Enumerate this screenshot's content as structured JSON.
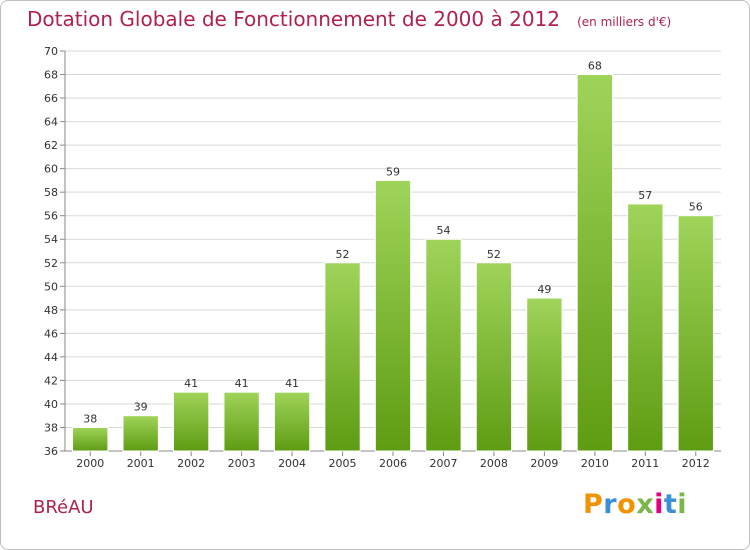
{
  "title": {
    "main": "Dotation Globale de Fonctionnement de 2000 à 2012",
    "subtitle": "(en milliers d'€)"
  },
  "commune": "BRéAU",
  "logo": {
    "text": "Proxiti",
    "colors": [
      "#f39200",
      "#3a8fd6",
      "#f39200",
      "#7ab648",
      "#e5007e",
      "#3a8fd6",
      "#7ab648"
    ]
  },
  "colors": {
    "title": "#b0224d",
    "bar_top": "#9fd45a",
    "bar_bottom": "#5e9c12",
    "grid": "#d9d9d9",
    "axis": "#888888"
  },
  "chart_data": {
    "type": "bar",
    "categories": [
      "2000",
      "2001",
      "2002",
      "2003",
      "2004",
      "2005",
      "2006",
      "2007",
      "2008",
      "2009",
      "2010",
      "2011",
      "2012"
    ],
    "values": [
      38,
      39,
      41,
      41,
      41,
      52,
      59,
      54,
      52,
      49,
      68,
      57,
      56
    ],
    "title": "Dotation Globale de Fonctionnement de 2000 à 2012",
    "subtitle": "(en milliers d'€)",
    "xlabel": "",
    "ylabel": "",
    "ylim": [
      36,
      70
    ],
    "yticks": [
      36,
      38,
      40,
      42,
      44,
      46,
      48,
      50,
      52,
      54,
      56,
      58,
      60,
      62,
      64,
      66,
      68,
      70
    ],
    "grid": true,
    "data_labels": true
  }
}
